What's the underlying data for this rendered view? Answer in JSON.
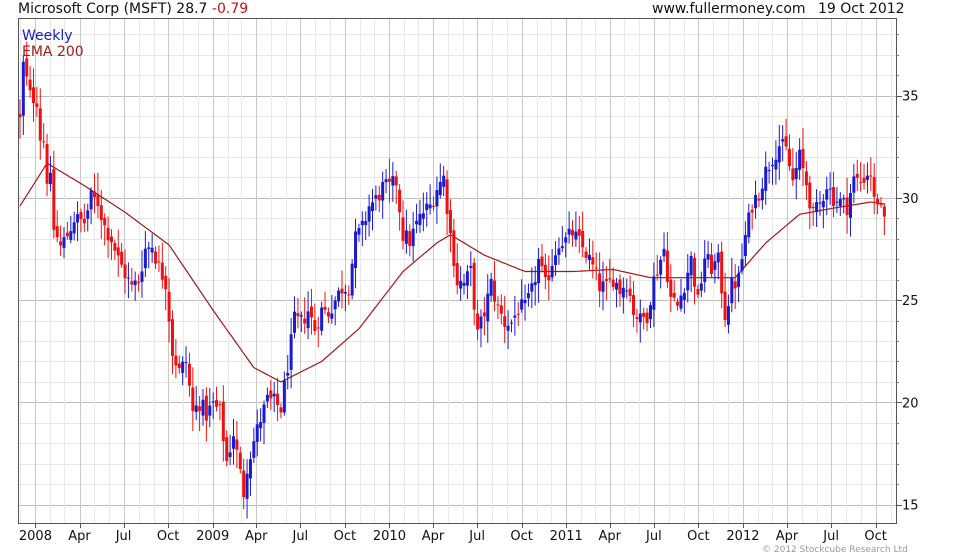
{
  "header": {
    "symbol_label": "Microsoft Corp (MSFT) 28.7",
    "change": "-0.79",
    "site": "www.fullermoney.com",
    "date": "19 Oct 2012"
  },
  "legend": {
    "period": "Weekly",
    "ema": "EMA 200"
  },
  "copyright": "© 2012 Stockcube Research Ltd",
  "colors": {
    "up": "#1a1ad2",
    "down": "#ee1111",
    "ema": "#a01818",
    "grid": "#d4d4d4",
    "frame": "#555555"
  },
  "chart_data": {
    "type": "candlestick-bar",
    "frequency": "weekly",
    "symbol": "MSFT",
    "last": 28.7,
    "change": -0.79,
    "date": "19 Oct 2012",
    "y_range": [
      14.1,
      38.8
    ],
    "y_ticks": [
      15,
      20,
      25,
      30,
      35
    ],
    "x_range": [
      "2007-11-26",
      "2012-11-12"
    ],
    "x_ticks": [
      {
        "label": "2008",
        "date": "2008-01-01"
      },
      {
        "label": "Apr",
        "date": "2008-04-01"
      },
      {
        "label": "Jul",
        "date": "2008-07-01"
      },
      {
        "label": "Oct",
        "date": "2008-10-01"
      },
      {
        "label": "2009",
        "date": "2009-01-01"
      },
      {
        "label": "Apr",
        "date": "2009-04-01"
      },
      {
        "label": "Jul",
        "date": "2009-07-01"
      },
      {
        "label": "Oct",
        "date": "2009-10-01"
      },
      {
        "label": "2010",
        "date": "2010-01-01"
      },
      {
        "label": "Apr",
        "date": "2010-04-01"
      },
      {
        "label": "Jul",
        "date": "2010-07-01"
      },
      {
        "label": "Oct",
        "date": "2010-10-01"
      },
      {
        "label": "2011",
        "date": "2011-01-01"
      },
      {
        "label": "Apr",
        "date": "2011-04-01"
      },
      {
        "label": "Jul",
        "date": "2011-07-01"
      },
      {
        "label": "Oct",
        "date": "2011-10-01"
      },
      {
        "label": "2012",
        "date": "2012-01-01"
      },
      {
        "label": "Apr",
        "date": "2012-04-01"
      },
      {
        "label": "Jul",
        "date": "2012-07-01"
      },
      {
        "label": "Oct",
        "date": "2012-10-01"
      }
    ],
    "price_anchors": [
      [
        "2007-11-30",
        33.8
      ],
      [
        "2007-12-07",
        36.5
      ],
      [
        "2007-12-21",
        35.0
      ],
      [
        "2008-01-04",
        34.8
      ],
      [
        "2008-01-11",
        33.0
      ],
      [
        "2008-01-18",
        32.8
      ],
      [
        "2008-01-25",
        31.0
      ],
      [
        "2008-02-01",
        30.8
      ],
      [
        "2008-02-08",
        28.5
      ],
      [
        "2008-02-22",
        27.6
      ],
      [
        "2008-03-07",
        28.2
      ],
      [
        "2008-03-21",
        29.0
      ],
      [
        "2008-04-11",
        28.8
      ],
      [
        "2008-04-25",
        30.0
      ],
      [
        "2008-05-09",
        29.8
      ],
      [
        "2008-05-23",
        28.6
      ],
      [
        "2008-06-06",
        28.0
      ],
      [
        "2008-06-20",
        27.0
      ],
      [
        "2008-07-04",
        26.3
      ],
      [
        "2008-07-18",
        25.6
      ],
      [
        "2008-08-01",
        26.0
      ],
      [
        "2008-08-15",
        27.5
      ],
      [
        "2008-08-29",
        27.7
      ],
      [
        "2008-09-12",
        26.6
      ],
      [
        "2008-09-26",
        25.9
      ],
      [
        "2008-10-10",
        22.5
      ],
      [
        "2008-10-24",
        21.5
      ],
      [
        "2008-11-07",
        22.0
      ],
      [
        "2008-11-21",
        19.5
      ],
      [
        "2008-12-05",
        20.0
      ],
      [
        "2008-12-19",
        19.4
      ],
      [
        "2009-01-02",
        19.9
      ],
      [
        "2009-01-16",
        19.5
      ],
      [
        "2009-01-30",
        17.1
      ],
      [
        "2009-02-13",
        18.5
      ],
      [
        "2009-02-27",
        16.5
      ],
      [
        "2009-03-06",
        15.6
      ],
      [
        "2009-03-13",
        16.9
      ],
      [
        "2009-03-27",
        18.1
      ],
      [
        "2009-04-10",
        19.2
      ],
      [
        "2009-04-24",
        20.1
      ],
      [
        "2009-05-08",
        20.0
      ],
      [
        "2009-05-22",
        19.7
      ],
      [
        "2009-06-05",
        21.8
      ],
      [
        "2009-06-19",
        24.0
      ],
      [
        "2009-07-03",
        23.9
      ],
      [
        "2009-07-17",
        24.5
      ],
      [
        "2009-07-31",
        23.6
      ],
      [
        "2009-08-14",
        24.5
      ],
      [
        "2009-08-28",
        24.4
      ],
      [
        "2009-09-11",
        25.0
      ],
      [
        "2009-09-25",
        25.6
      ],
      [
        "2009-10-09",
        25.7
      ],
      [
        "2009-10-23",
        28.0
      ],
      [
        "2009-11-06",
        28.5
      ],
      [
        "2009-11-20",
        29.6
      ],
      [
        "2009-12-04",
        29.9
      ],
      [
        "2009-12-18",
        30.5
      ],
      [
        "2010-01-01",
        30.5
      ],
      [
        "2010-01-15",
        30.8
      ],
      [
        "2010-01-29",
        28.2
      ],
      [
        "2010-02-12",
        27.9
      ],
      [
        "2010-02-26",
        28.7
      ],
      [
        "2010-03-12",
        29.3
      ],
      [
        "2010-03-26",
        29.6
      ],
      [
        "2010-04-09",
        30.5
      ],
      [
        "2010-04-23",
        31.0
      ],
      [
        "2010-05-07",
        28.2
      ],
      [
        "2010-05-21",
        25.9
      ],
      [
        "2010-06-04",
        25.8
      ],
      [
        "2010-06-18",
        26.4
      ],
      [
        "2010-07-02",
        23.3
      ],
      [
        "2010-07-16",
        24.4
      ],
      [
        "2010-07-30",
        25.8
      ],
      [
        "2010-08-13",
        24.6
      ],
      [
        "2010-08-27",
        23.9
      ],
      [
        "2010-09-10",
        23.9
      ],
      [
        "2010-09-24",
        24.6
      ],
      [
        "2010-10-08",
        24.6
      ],
      [
        "2010-10-22",
        25.4
      ],
      [
        "2010-11-05",
        26.9
      ],
      [
        "2010-11-19",
        25.7
      ],
      [
        "2010-12-03",
        26.9
      ],
      [
        "2010-12-17",
        27.9
      ],
      [
        "2010-12-31",
        27.9
      ],
      [
        "2011-01-14",
        28.3
      ],
      [
        "2011-01-28",
        27.8
      ],
      [
        "2011-02-11",
        27.3
      ],
      [
        "2011-02-25",
        26.6
      ],
      [
        "2011-03-11",
        25.7
      ],
      [
        "2011-03-25",
        25.6
      ],
      [
        "2011-04-08",
        26.1
      ],
      [
        "2011-04-22",
        25.5
      ],
      [
        "2011-05-06",
        25.9
      ],
      [
        "2011-05-20",
        24.5
      ],
      [
        "2011-06-03",
        24.0
      ],
      [
        "2011-06-17",
        24.3
      ],
      [
        "2011-07-01",
        26.0
      ],
      [
        "2011-07-22",
        27.5
      ],
      [
        "2011-08-05",
        25.1
      ],
      [
        "2011-08-19",
        24.7
      ],
      [
        "2011-09-02",
        25.8
      ],
      [
        "2011-09-16",
        27.0
      ],
      [
        "2011-09-30",
        24.9
      ],
      [
        "2011-10-14",
        27.1
      ],
      [
        "2011-10-28",
        26.6
      ],
      [
        "2011-11-11",
        26.9
      ],
      [
        "2011-11-25",
        24.3
      ],
      [
        "2011-12-09",
        25.7
      ],
      [
        "2011-12-23",
        26.0
      ],
      [
        "2012-01-06",
        28.1
      ],
      [
        "2012-01-20",
        29.7
      ],
      [
        "2012-02-03",
        30.3
      ],
      [
        "2012-02-17",
        31.3
      ],
      [
        "2012-03-02",
        32.0
      ],
      [
        "2012-03-16",
        32.6
      ],
      [
        "2012-03-30",
        32.3
      ],
      [
        "2012-04-13",
        30.8
      ],
      [
        "2012-04-27",
        32.0
      ],
      [
        "2012-05-11",
        30.7
      ],
      [
        "2012-05-25",
        29.1
      ],
      [
        "2012-06-08",
        29.7
      ],
      [
        "2012-06-22",
        30.7
      ],
      [
        "2012-07-06",
        30.0
      ],
      [
        "2012-07-20",
        29.8
      ],
      [
        "2012-08-03",
        29.6
      ],
      [
        "2012-08-17",
        30.9
      ],
      [
        "2012-08-31",
        30.8
      ],
      [
        "2012-09-14",
        31.2
      ],
      [
        "2012-09-21",
        31.2
      ],
      [
        "2012-09-28",
        29.8
      ],
      [
        "2012-10-05",
        29.9
      ],
      [
        "2012-10-12",
        29.3
      ],
      [
        "2012-10-19",
        28.7
      ]
    ],
    "ema200_anchors": [
      [
        "2007-11-30",
        29.6
      ],
      [
        "2008-01-25",
        31.7
      ],
      [
        "2008-04-11",
        30.6
      ],
      [
        "2008-07-04",
        29.3
      ],
      [
        "2008-10-03",
        27.7
      ],
      [
        "2009-01-02",
        24.5
      ],
      [
        "2009-03-27",
        21.7
      ],
      [
        "2009-05-22",
        21.0
      ],
      [
        "2009-08-14",
        22.0
      ],
      [
        "2009-10-30",
        23.6
      ],
      [
        "2010-01-29",
        26.4
      ],
      [
        "2010-04-09",
        27.8
      ],
      [
        "2010-05-07",
        28.2
      ],
      [
        "2010-07-16",
        27.2
      ],
      [
        "2010-10-08",
        26.4
      ],
      [
        "2011-01-14",
        26.4
      ],
      [
        "2011-04-08",
        26.5
      ],
      [
        "2011-06-24",
        26.1
      ],
      [
        "2011-09-30",
        26.1
      ],
      [
        "2011-12-16",
        26.1
      ],
      [
        "2012-02-17",
        27.8
      ],
      [
        "2012-04-27",
        29.2
      ],
      [
        "2012-07-06",
        29.5
      ],
      [
        "2012-09-21",
        29.8
      ],
      [
        "2012-10-19",
        29.7
      ]
    ]
  }
}
